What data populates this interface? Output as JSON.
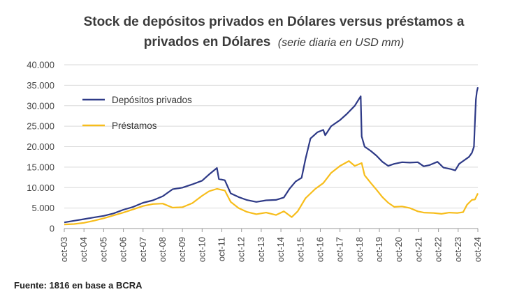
{
  "chart_data": {
    "type": "line",
    "title_line1": "Stock de depósitos privados en Dólares versus préstamos a",
    "title_line2": "privados en Dólares",
    "subtitle": "(serie diaria en USD mm)",
    "source": "Fuente: 1816 en base a BCRA",
    "y_ticks": [
      "0",
      "5.000",
      "10.000",
      "15.000",
      "20.000",
      "25.000",
      "30.000",
      "35.000",
      "40.000"
    ],
    "ylim": [
      0,
      40000
    ],
    "x_ticks": [
      "oct-03",
      "oct-04",
      "oct-05",
      "oct-06",
      "oct-07",
      "oct-08",
      "oct-09",
      "oct-10",
      "oct-11",
      "oct-12",
      "oct-13",
      "oct-14",
      "oct-15",
      "oct-16",
      "oct-17",
      "oct-18",
      "oct-19",
      "oct-20",
      "oct-21",
      "oct-22",
      "oct-23",
      "oct-24"
    ],
    "xlim": [
      2003.75,
      2024.75
    ],
    "grid": "horizontal",
    "legend": "top-left",
    "series": [
      {
        "name": "Depósitos privados",
        "color": "#2e3a87",
        "points": [
          [
            2003.75,
            1500
          ],
          [
            2004.25,
            1900
          ],
          [
            2004.75,
            2300
          ],
          [
            2005.25,
            2700
          ],
          [
            2005.75,
            3100
          ],
          [
            2006.25,
            3700
          ],
          [
            2006.75,
            4600
          ],
          [
            2007.25,
            5300
          ],
          [
            2007.75,
            6300
          ],
          [
            2008.25,
            6900
          ],
          [
            2008.75,
            7900
          ],
          [
            2009.25,
            9600
          ],
          [
            2009.75,
            10000
          ],
          [
            2010.25,
            10800
          ],
          [
            2010.75,
            11700
          ],
          [
            2011.1,
            13200
          ],
          [
            2011.5,
            14800
          ],
          [
            2011.6,
            12100
          ],
          [
            2011.9,
            11800
          ],
          [
            2012.2,
            8600
          ],
          [
            2012.6,
            7700
          ],
          [
            2013.0,
            7000
          ],
          [
            2013.5,
            6500
          ],
          [
            2014.0,
            6900
          ],
          [
            2014.5,
            7000
          ],
          [
            2014.9,
            7600
          ],
          [
            2015.2,
            9800
          ],
          [
            2015.5,
            11500
          ],
          [
            2015.8,
            12400
          ],
          [
            2016.0,
            17000
          ],
          [
            2016.25,
            22000
          ],
          [
            2016.6,
            23500
          ],
          [
            2016.9,
            24100
          ],
          [
            2017.0,
            22800
          ],
          [
            2017.3,
            25000
          ],
          [
            2017.75,
            26500
          ],
          [
            2018.1,
            28000
          ],
          [
            2018.5,
            30000
          ],
          [
            2018.8,
            32300
          ],
          [
            2018.85,
            22500
          ],
          [
            2019.0,
            20000
          ],
          [
            2019.3,
            19000
          ],
          [
            2019.6,
            17800
          ],
          [
            2019.9,
            16300
          ],
          [
            2020.2,
            15300
          ],
          [
            2020.5,
            15800
          ],
          [
            2020.9,
            16200
          ],
          [
            2021.3,
            16100
          ],
          [
            2021.7,
            16200
          ],
          [
            2022.0,
            15200
          ],
          [
            2022.3,
            15500
          ],
          [
            2022.7,
            16300
          ],
          [
            2023.0,
            14900
          ],
          [
            2023.4,
            14500
          ],
          [
            2023.6,
            14200
          ],
          [
            2023.8,
            15800
          ],
          [
            2024.0,
            16500
          ],
          [
            2024.3,
            17500
          ],
          [
            2024.45,
            18500
          ],
          [
            2024.55,
            20000
          ],
          [
            2024.6,
            26000
          ],
          [
            2024.65,
            31500
          ],
          [
            2024.7,
            33500
          ],
          [
            2024.75,
            34500
          ]
        ]
      },
      {
        "name": "Préstamos",
        "color": "#f7bd1b",
        "points": [
          [
            2003.75,
            1000
          ],
          [
            2004.25,
            1100
          ],
          [
            2004.75,
            1400
          ],
          [
            2005.25,
            1900
          ],
          [
            2005.75,
            2500
          ],
          [
            2006.25,
            3200
          ],
          [
            2006.75,
            3900
          ],
          [
            2007.25,
            4700
          ],
          [
            2007.75,
            5500
          ],
          [
            2008.25,
            6000
          ],
          [
            2008.75,
            6100
          ],
          [
            2009.25,
            5100
          ],
          [
            2009.75,
            5200
          ],
          [
            2010.25,
            6200
          ],
          [
            2010.75,
            8000
          ],
          [
            2011.1,
            9100
          ],
          [
            2011.5,
            9700
          ],
          [
            2011.9,
            9300
          ],
          [
            2012.2,
            6500
          ],
          [
            2012.6,
            5000
          ],
          [
            2013.0,
            4100
          ],
          [
            2013.5,
            3500
          ],
          [
            2014.0,
            3900
          ],
          [
            2014.5,
            3300
          ],
          [
            2014.9,
            4200
          ],
          [
            2015.3,
            2800
          ],
          [
            2015.6,
            4200
          ],
          [
            2016.0,
            7400
          ],
          [
            2016.5,
            9700
          ],
          [
            2016.9,
            11100
          ],
          [
            2017.3,
            13600
          ],
          [
            2017.75,
            15300
          ],
          [
            2018.2,
            16500
          ],
          [
            2018.5,
            15300
          ],
          [
            2018.85,
            16000
          ],
          [
            2019.0,
            13000
          ],
          [
            2019.3,
            11200
          ],
          [
            2019.6,
            9500
          ],
          [
            2019.9,
            7700
          ],
          [
            2020.2,
            6300
          ],
          [
            2020.5,
            5300
          ],
          [
            2020.9,
            5400
          ],
          [
            2021.3,
            5000
          ],
          [
            2021.7,
            4200
          ],
          [
            2022.0,
            3900
          ],
          [
            2022.5,
            3800
          ],
          [
            2022.9,
            3600
          ],
          [
            2023.3,
            3900
          ],
          [
            2023.7,
            3800
          ],
          [
            2024.0,
            4000
          ],
          [
            2024.2,
            5800
          ],
          [
            2024.45,
            7000
          ],
          [
            2024.6,
            7100
          ],
          [
            2024.75,
            8600
          ]
        ]
      }
    ]
  }
}
